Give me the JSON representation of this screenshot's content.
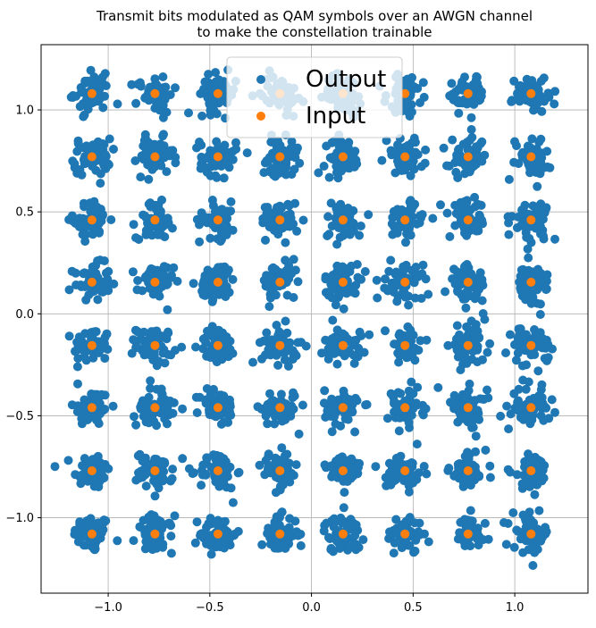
{
  "chart_data": {
    "type": "scatter",
    "title": "Transmit bits modulated as QAM symbols over an AWGN channel",
    "subtitle": "to make the constellation trainable",
    "xlim": [
      -1.33,
      1.36
    ],
    "ylim": [
      -1.37,
      1.32
    ],
    "grid": true,
    "legend_position": "top-center",
    "x_ticks": [
      -1.0,
      -0.5,
      0.0,
      0.5,
      1.0
    ],
    "x_tick_labels": [
      "−1.0",
      "−0.5",
      "0.0",
      "0.5",
      "1.0"
    ],
    "y_ticks": [
      -1.0,
      -0.5,
      0.0,
      0.5,
      1.0
    ],
    "y_tick_labels": [
      "−1.0",
      "−0.5",
      "0.0",
      "0.5",
      "1.0"
    ],
    "constellation_levels": [
      -1.08,
      -0.77,
      -0.46,
      -0.155,
      0.155,
      0.46,
      0.77,
      1.08
    ],
    "output_spread": 0.045,
    "series": [
      {
        "name": "Output",
        "color": "#1f77b4",
        "description_of_points": "noisy received symbols clustered around each of the 64 input points"
      },
      {
        "name": "Input",
        "color": "#ff7f0e"
      }
    ]
  }
}
